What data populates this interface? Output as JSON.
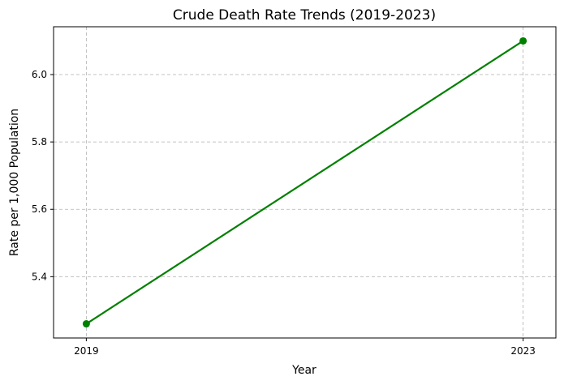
{
  "chart_data": {
    "type": "line",
    "title": "Crude Death Rate Trends (2019-2023)",
    "xlabel": "Year",
    "ylabel": "Rate per 1,000 Population",
    "x": [
      2019,
      2023
    ],
    "series": [
      {
        "values": [
          5.26,
          6.1
        ],
        "color": "#008000",
        "marker": "circle"
      }
    ],
    "xticks": [
      "2019",
      "2023"
    ],
    "yticks": [
      "5.4",
      "5.6",
      "5.8",
      "6.0"
    ],
    "xlim": [
      2018.7,
      2023.3
    ],
    "ylim": [
      5.218,
      6.142
    ],
    "grid": true,
    "grid_style": "dashed",
    "grid_color": "#b0b0b0"
  }
}
